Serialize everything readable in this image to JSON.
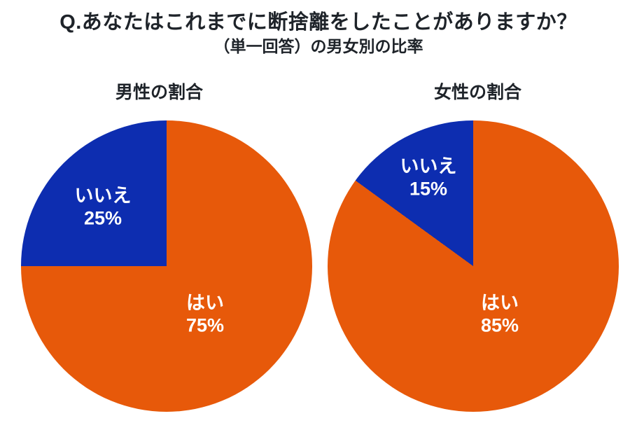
{
  "header": {
    "title": "Q.あなたはこれまでに断捨離をしたことがありますか？",
    "subtitle": "（単一回答）の男女別の比率"
  },
  "colors": {
    "yes_slice": "#E7590A",
    "no_slice": "#0D2DB0",
    "title_text": "#1E2329",
    "label_text": "#FFFFFF",
    "background": "#FFFFFF"
  },
  "chart_data": [
    {
      "type": "pie",
      "title": "男性の割合",
      "start_angle": "12-oclock",
      "direction": "clockwise",
      "legend_position": "none",
      "slices": [
        {
          "label": "はい",
          "value": 75,
          "pct_text": "75%",
          "color": "#E7590A"
        },
        {
          "label": "いいえ",
          "value": 25,
          "pct_text": "25%",
          "color": "#0D2DB0"
        }
      ]
    },
    {
      "type": "pie",
      "title": "女性の割合",
      "start_angle": "12-oclock",
      "direction": "clockwise",
      "legend_position": "none",
      "slices": [
        {
          "label": "はい",
          "value": 85,
          "pct_text": "85%",
          "color": "#E7590A"
        },
        {
          "label": "いいえ",
          "value": 15,
          "pct_text": "15%",
          "color": "#0D2DB0"
        }
      ]
    }
  ]
}
